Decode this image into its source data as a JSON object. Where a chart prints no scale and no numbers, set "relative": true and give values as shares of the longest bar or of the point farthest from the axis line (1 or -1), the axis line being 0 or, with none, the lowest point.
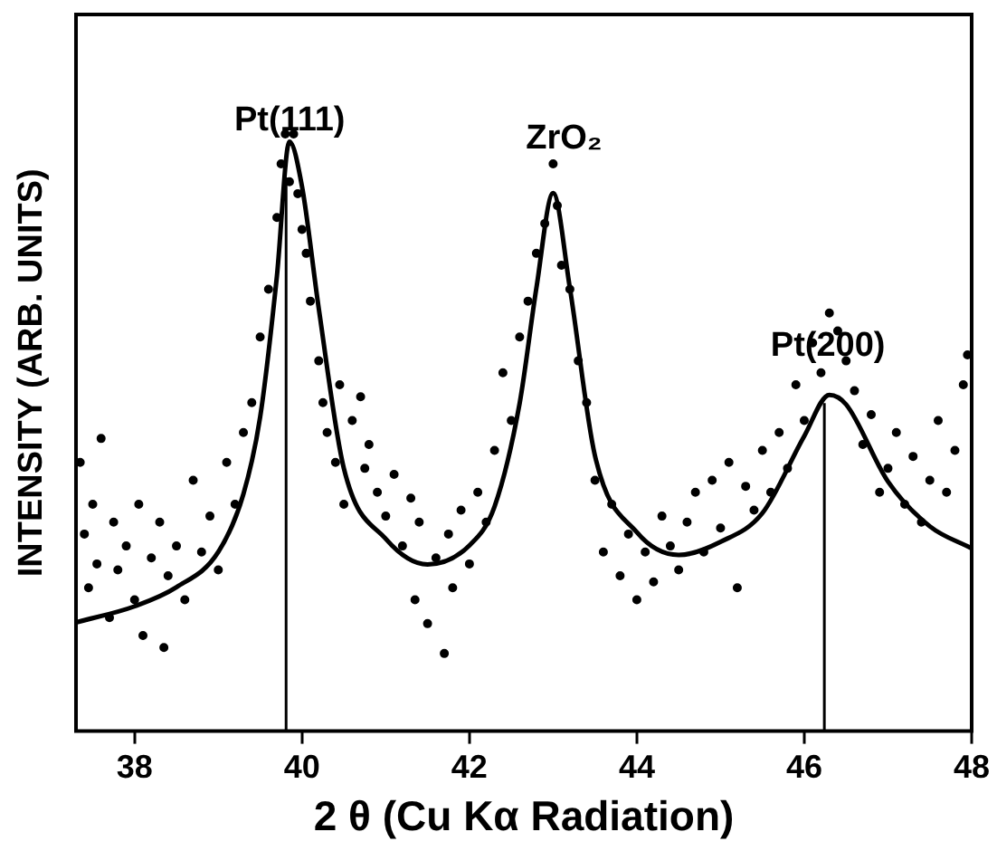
{
  "chart_data": {
    "type": "scatter",
    "relative": true,
    "xlabel": "2 θ (Cu Kα Radiation)",
    "ylabel": "INTENSITY (ARB. UNITS)",
    "xlim": [
      37.3,
      48
    ],
    "xticks": [
      38,
      40,
      42,
      44,
      46,
      48
    ],
    "grid": false,
    "legend": false,
    "annotations": [
      {
        "text": "ZrO₂",
        "x": 43,
        "y": 0.95
      }
    ],
    "ref_lines": [
      {
        "axis": "x",
        "value": 39.81,
        "label": "Pt(111)",
        "color": "#000000"
      },
      {
        "axis": "x",
        "value": 46.24,
        "label": "Pt(200)",
        "color": "#000000"
      }
    ],
    "series": [
      {
        "type": "scatter",
        "color": "#000000",
        "marker": "circle",
        "x": [
          37.35,
          37.4,
          37.45,
          37.5,
          37.55,
          37.6,
          37.7,
          37.75,
          37.8,
          37.9,
          38.0,
          38.05,
          38.1,
          38.2,
          38.3,
          38.35,
          38.4,
          38.5,
          38.6,
          38.7,
          38.8,
          38.9,
          39.0,
          39.1,
          39.2,
          39.3,
          39.4,
          39.5,
          39.6,
          39.7,
          39.75,
          39.8,
          39.85,
          39.9,
          39.95,
          40.0,
          40.05,
          40.1,
          40.2,
          40.25,
          40.3,
          40.4,
          40.45,
          40.5,
          40.6,
          40.7,
          40.75,
          40.8,
          40.9,
          41.0,
          41.1,
          41.2,
          41.3,
          41.35,
          41.4,
          41.5,
          41.6,
          41.7,
          41.75,
          41.8,
          41.9,
          42.0,
          42.1,
          42.2,
          42.3,
          42.4,
          42.5,
          42.6,
          42.7,
          42.8,
          42.9,
          43.0,
          43.05,
          43.1,
          43.2,
          43.3,
          43.4,
          43.5,
          43.6,
          43.7,
          43.8,
          43.9,
          44.0,
          44.1,
          44.2,
          44.3,
          44.4,
          44.5,
          44.6,
          44.7,
          44.8,
          44.9,
          45.0,
          45.1,
          45.2,
          45.3,
          45.4,
          45.5,
          45.6,
          45.7,
          45.8,
          45.9,
          46.0,
          46.1,
          46.2,
          46.3,
          46.4,
          46.5,
          46.6,
          46.7,
          46.8,
          46.9,
          47.0,
          47.1,
          47.2,
          47.3,
          47.4,
          47.5,
          47.6,
          47.7,
          47.8,
          47.9,
          47.95
        ],
        "values": [
          0.45,
          0.33,
          0.24,
          0.38,
          0.28,
          0.49,
          0.19,
          0.35,
          0.27,
          0.31,
          0.22,
          0.38,
          0.16,
          0.29,
          0.35,
          0.14,
          0.26,
          0.31,
          0.22,
          0.42,
          0.3,
          0.36,
          0.27,
          0.45,
          0.38,
          0.5,
          0.55,
          0.66,
          0.74,
          0.86,
          0.95,
          1.0,
          0.92,
          1.0,
          0.9,
          0.84,
          0.8,
          0.72,
          0.62,
          0.55,
          0.5,
          0.45,
          0.58,
          0.38,
          0.52,
          0.56,
          0.44,
          0.48,
          0.4,
          0.36,
          0.43,
          0.31,
          0.39,
          0.22,
          0.35,
          0.18,
          0.29,
          0.13,
          0.33,
          0.24,
          0.37,
          0.28,
          0.4,
          0.35,
          0.47,
          0.6,
          0.52,
          0.66,
          0.72,
          0.8,
          0.85,
          0.95,
          0.88,
          0.78,
          0.74,
          0.62,
          0.55,
          0.42,
          0.3,
          0.38,
          0.26,
          0.33,
          0.22,
          0.3,
          0.25,
          0.36,
          0.31,
          0.27,
          0.35,
          0.4,
          0.3,
          0.42,
          0.34,
          0.45,
          0.24,
          0.41,
          0.37,
          0.47,
          0.4,
          0.5,
          0.44,
          0.58,
          0.52,
          0.65,
          0.6,
          0.7,
          0.67,
          0.62,
          0.57,
          0.48,
          0.53,
          0.4,
          0.44,
          0.5,
          0.38,
          0.46,
          0.35,
          0.42,
          0.52,
          0.4,
          0.47,
          0.58,
          0.63
        ]
      },
      {
        "type": "line",
        "color": "#000000",
        "marker": "none",
        "line_style": "solid",
        "x": [
          37.3,
          38.0,
          38.5,
          39.0,
          39.3,
          39.5,
          39.7,
          39.85,
          40.0,
          40.2,
          40.5,
          41.0,
          41.5,
          42.0,
          42.3,
          42.6,
          42.8,
          43.0,
          43.2,
          43.5,
          44.0,
          44.5,
          45.0,
          45.5,
          46.0,
          46.3,
          46.5,
          47.0,
          47.5,
          48.0
        ],
        "values": [
          0.182,
          0.209,
          0.241,
          0.3,
          0.397,
          0.526,
          0.762,
          0.987,
          0.912,
          0.708,
          0.44,
          0.322,
          0.279,
          0.311,
          0.376,
          0.549,
          0.742,
          0.901,
          0.742,
          0.461,
          0.333,
          0.295,
          0.317,
          0.365,
          0.494,
          0.563,
          0.547,
          0.418,
          0.343,
          0.306
        ]
      }
    ]
  }
}
